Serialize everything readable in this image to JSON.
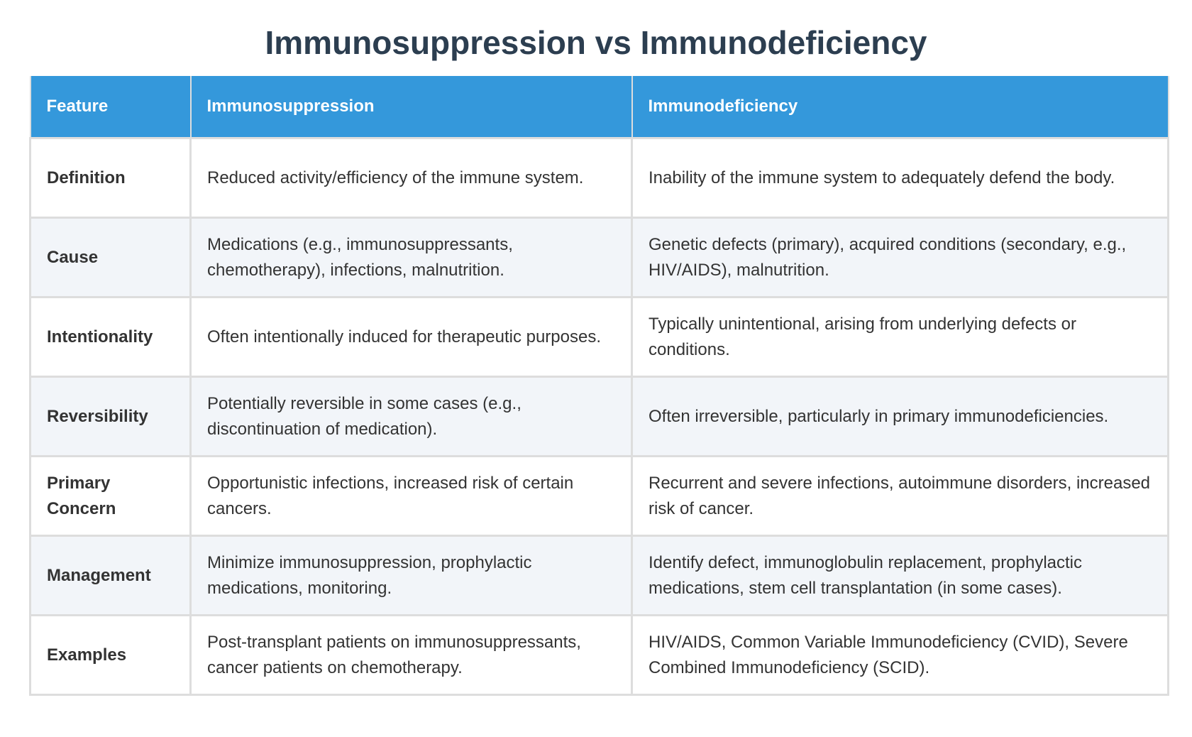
{
  "title": "Immunosuppression vs Immunodeficiency",
  "table": {
    "headers": [
      "Feature",
      "Immunosuppression",
      "Immunodeficiency"
    ],
    "rows": [
      {
        "feature": "Definition",
        "immunosuppression": "Reduced activity/efficiency of the immune system.",
        "immunodeficiency": "Inability of the immune system to adequately defend the body."
      },
      {
        "feature": "Cause",
        "immunosuppression": "Medications (e.g., immunosuppressants, chemotherapy), infections, malnutrition.",
        "immunodeficiency": "Genetic defects (primary), acquired conditions (secondary, e.g., HIV/AIDS), malnutrition."
      },
      {
        "feature": "Intentionality",
        "immunosuppression": "Often intentionally induced for therapeutic purposes.",
        "immunodeficiency": "Typically unintentional, arising from underlying defects or conditions."
      },
      {
        "feature": "Reversibility",
        "immunosuppression": "Potentially reversible in some cases (e.g., discontinuation of medication).",
        "immunodeficiency": "Often irreversible, particularly in primary immunodeficiencies."
      },
      {
        "feature": "Primary Concern",
        "immunosuppression": "Opportunistic infections, increased risk of certain cancers.",
        "immunodeficiency": "Recurrent and severe infections, autoimmune disorders, increased risk of cancer."
      },
      {
        "feature": "Management",
        "immunosuppression": "Minimize immunosuppression, prophylactic medications, monitoring.",
        "immunodeficiency": "Identify defect, immunoglobulin replacement, prophylactic medications, stem cell transplantation (in some cases)."
      },
      {
        "feature": "Examples",
        "immunosuppression": "Post-transplant patients on immunosuppressants, cancer patients on chemotherapy.",
        "immunodeficiency": "HIV/AIDS, Common Variable Immunodeficiency (CVID), Severe Combined Immunodeficiency (SCID)."
      }
    ]
  },
  "colors": {
    "header_bg": "#3498db",
    "title": "#2c3e50",
    "stripe": "#f2f5f9",
    "border": "#dddddd"
  }
}
